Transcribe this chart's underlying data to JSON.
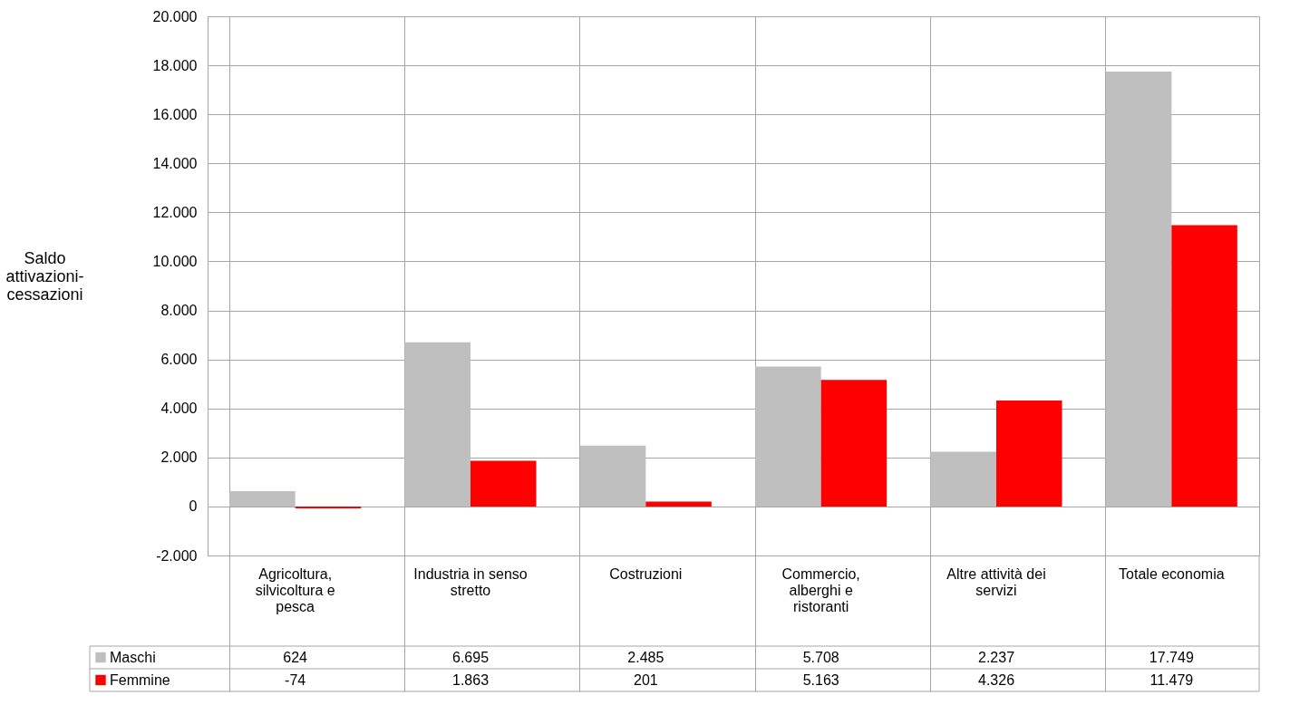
{
  "chart_data": {
    "type": "bar",
    "ylabel": "Saldo attivazioni-cessazioni",
    "categories": [
      "Agricoltura, silvicoltura e pesca",
      "Industria in senso stretto",
      "Costruzioni",
      "Commercio, alberghi e ristoranti",
      "Altre attività dei servizi",
      "Totale economia"
    ],
    "series": [
      {
        "name": "Maschi",
        "color": "#bfbfbf",
        "values": [
          624,
          6695,
          2485,
          5708,
          2237,
          17749
        ],
        "value_labels": [
          "624",
          "6.695",
          "2.485",
          "5.708",
          "2.237",
          "17.749"
        ]
      },
      {
        "name": "Femmine",
        "color": "#ff0000",
        "values": [
          -74,
          1863,
          201,
          5163,
          4326,
          11479
        ],
        "value_labels": [
          "-74",
          "1.863",
          "201",
          "5.163",
          "4.326",
          "11.479"
        ]
      }
    ],
    "ylim": [
      -2000,
      20000
    ],
    "yticks": [
      {
        "value": -2000,
        "label": "-2.000"
      },
      {
        "value": 0,
        "label": "0"
      },
      {
        "value": 2000,
        "label": "2.000"
      },
      {
        "value": 4000,
        "label": "4.000"
      },
      {
        "value": 6000,
        "label": "6.000"
      },
      {
        "value": 8000,
        "label": "8.000"
      },
      {
        "value": 10000,
        "label": "10.000"
      },
      {
        "value": 12000,
        "label": "12.000"
      },
      {
        "value": 14000,
        "label": "14.000"
      },
      {
        "value": 16000,
        "label": "16.000"
      },
      {
        "value": 18000,
        "label": "18.000"
      },
      {
        "value": 20000,
        "label": "20.000"
      }
    ],
    "grid": true,
    "legend": "bottom left"
  }
}
